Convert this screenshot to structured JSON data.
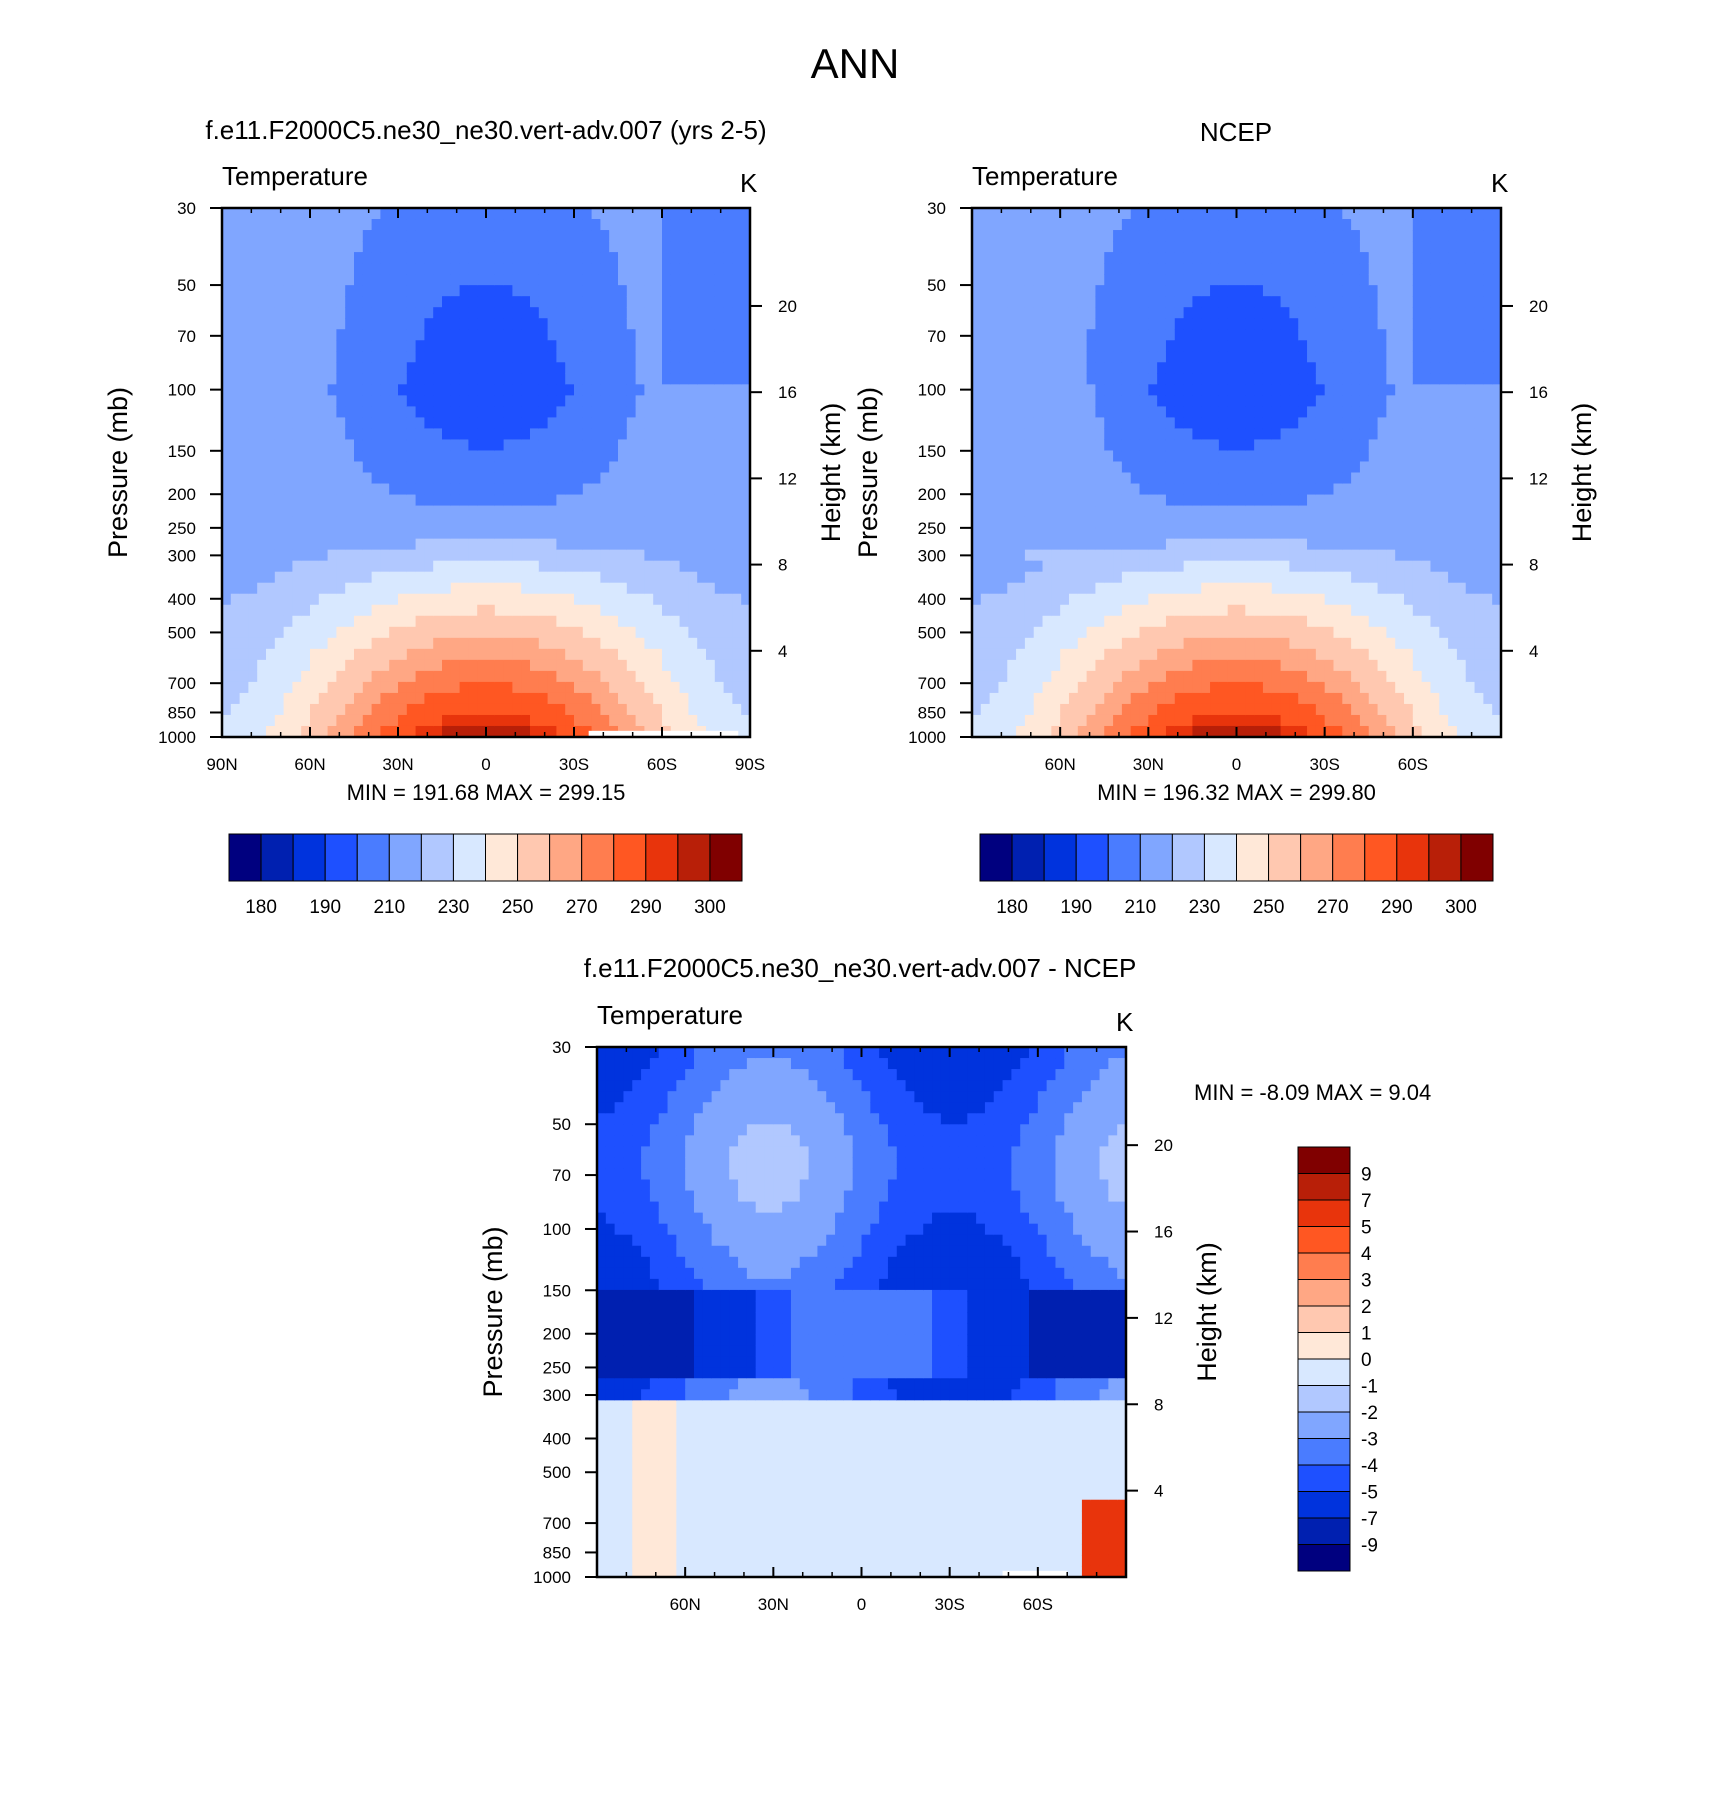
{
  "figure_title": "ANN",
  "colors": {
    "abs": [
      "#00007f",
      "#0020b0",
      "#0033dd",
      "#1e50ff",
      "#4a7cff",
      "#80a6ff",
      "#b1c8ff",
      "#d8e8ff",
      "#ffe8d8",
      "#ffc8b0",
      "#ffa784",
      "#ff7d4f",
      "#ff5722",
      "#e8340c",
      "#b81f08",
      "#800000"
    ],
    "diff": [
      "#00007f",
      "#0020b0",
      "#0033dd",
      "#1e50ff",
      "#4a7cff",
      "#80a6ff",
      "#b1c8ff",
      "#d8e8ff",
      "#ffe8d8",
      "#ffc8b0",
      "#ffa784",
      "#ff7d4f",
      "#ff5722",
      "#e8340c",
      "#b81f08",
      "#800000"
    ]
  },
  "chart_data": [
    {
      "type": "heatmap",
      "id": "model",
      "subtitle": "f.e11.F2000C5.ne30_ne30.vert-adv.007 (yrs 2-5)",
      "variable": "Temperature",
      "units": "K",
      "ylabel": "Pressure (mb)",
      "ylabel_right": "Height (km)",
      "x_ticks": [
        {
          "v": 90,
          "label": "90N"
        },
        {
          "v": 60,
          "label": "60N"
        },
        {
          "v": 30,
          "label": "30N"
        },
        {
          "v": 0,
          "label": "0"
        },
        {
          "v": -30,
          "label": "30S"
        },
        {
          "v": -60,
          "label": "60S"
        },
        {
          "v": -90,
          "label": "90S"
        }
      ],
      "xlim": [
        90,
        -90
      ],
      "y_ticks": [
        30,
        50,
        70,
        100,
        150,
        200,
        250,
        300,
        400,
        500,
        700,
        850,
        1000
      ],
      "ylim": [
        1000,
        30
      ],
      "height_ticks": [
        20,
        16,
        12,
        8,
        4
      ],
      "stats_text": "MIN = 191.68  MAX = 299.15",
      "levels": [
        180,
        185,
        190,
        200,
        210,
        220,
        230,
        240,
        250,
        260,
        270,
        280,
        290,
        295,
        300
      ],
      "colorbar_labels": [
        "180",
        "190",
        "210",
        "230",
        "250",
        "270",
        "290",
        "300"
      ],
      "colorbar": "horizontal",
      "field": "model"
    },
    {
      "type": "heatmap",
      "id": "ncep",
      "subtitle": "NCEP",
      "variable": "Temperature",
      "units": "K",
      "ylabel": "Pressure (mb)",
      "ylabel_right": "Height (km)",
      "x_ticks": [
        {
          "v": 60,
          "label": "60N"
        },
        {
          "v": 30,
          "label": "30N"
        },
        {
          "v": 0,
          "label": "0"
        },
        {
          "v": -30,
          "label": "30S"
        },
        {
          "v": -60,
          "label": "60S"
        }
      ],
      "xlim": [
        90,
        -90
      ],
      "y_ticks": [
        30,
        50,
        70,
        100,
        150,
        200,
        250,
        300,
        400,
        500,
        700,
        850,
        1000
      ],
      "ylim": [
        1000,
        30
      ],
      "height_ticks": [
        20,
        16,
        12,
        8,
        4
      ],
      "stats_text": "MIN = 196.32  MAX = 299.80",
      "levels": [
        180,
        185,
        190,
        200,
        210,
        220,
        230,
        240,
        250,
        260,
        270,
        280,
        290,
        295,
        300
      ],
      "colorbar_labels": [
        "180",
        "190",
        "210",
        "230",
        "250",
        "270",
        "290",
        "300"
      ],
      "colorbar": "horizontal",
      "field": "ncep"
    },
    {
      "type": "heatmap",
      "id": "diff",
      "subtitle": "f.e11.F2000C5.ne30_ne30.vert-adv.007 - NCEP",
      "variable": "Temperature",
      "units": "K",
      "ylabel": "Pressure (mb)",
      "ylabel_right": "Height (km)",
      "x_ticks": [
        {
          "v": 60,
          "label": "60N"
        },
        {
          "v": 30,
          "label": "30N"
        },
        {
          "v": 0,
          "label": "0"
        },
        {
          "v": -30,
          "label": "30S"
        },
        {
          "v": -60,
          "label": "60S"
        }
      ],
      "xlim": [
        90,
        -90
      ],
      "y_ticks": [
        30,
        50,
        70,
        100,
        150,
        200,
        250,
        300,
        400,
        500,
        700,
        850,
        1000
      ],
      "ylim": [
        1000,
        30
      ],
      "height_ticks": [
        20,
        16,
        12,
        8,
        4
      ],
      "stats_text": "MIN =  -8.09  MAX =   9.04",
      "levels": [
        -9,
        -7,
        -5,
        -4,
        -3,
        -2,
        -1,
        0,
        1,
        2,
        3,
        4,
        5,
        7,
        9
      ],
      "colorbar_labels": [
        "9",
        "7",
        "5",
        "4",
        "3",
        "2",
        "1",
        "0",
        "-1",
        "-2",
        "-3",
        "-4",
        "-5",
        "-7",
        "-9"
      ],
      "colorbar": "vertical",
      "field": "diff"
    }
  ]
}
